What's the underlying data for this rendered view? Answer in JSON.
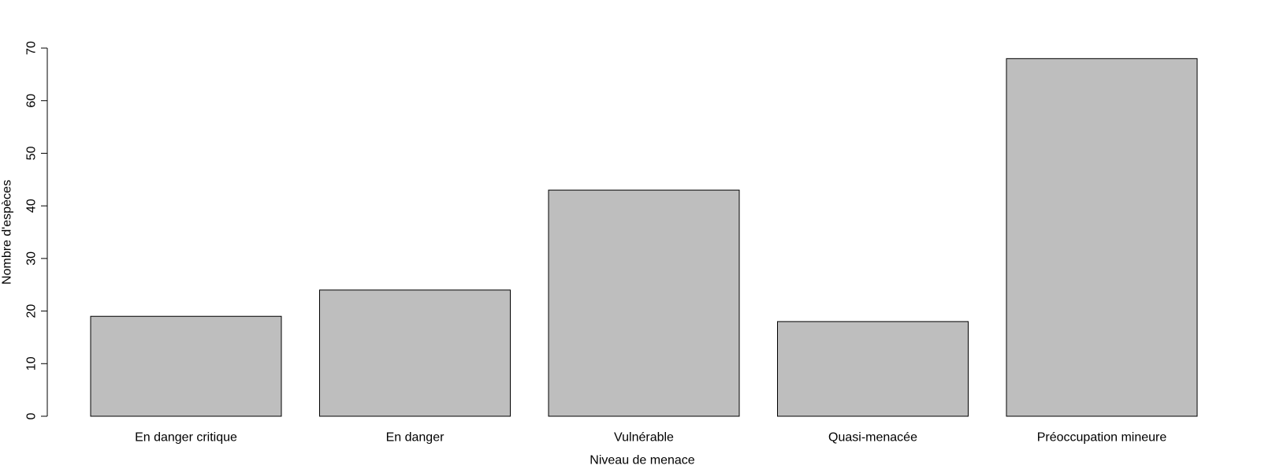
{
  "chart_data": {
    "type": "bar",
    "categories": [
      "En danger critique",
      "En danger",
      "Vulnérable",
      "Quasi-menacée",
      "Préoccupation mineure"
    ],
    "values": [
      19,
      24,
      43,
      18,
      68
    ],
    "xlabel": "Niveau de menace",
    "ylabel": "Nombre d'espèces",
    "ylim": [
      0,
      70
    ],
    "yticks": [
      0,
      10,
      20,
      30,
      40,
      50,
      60,
      70
    ],
    "bar_color": "#bebebe",
    "bar_stroke": "#000000",
    "grid": false
  }
}
